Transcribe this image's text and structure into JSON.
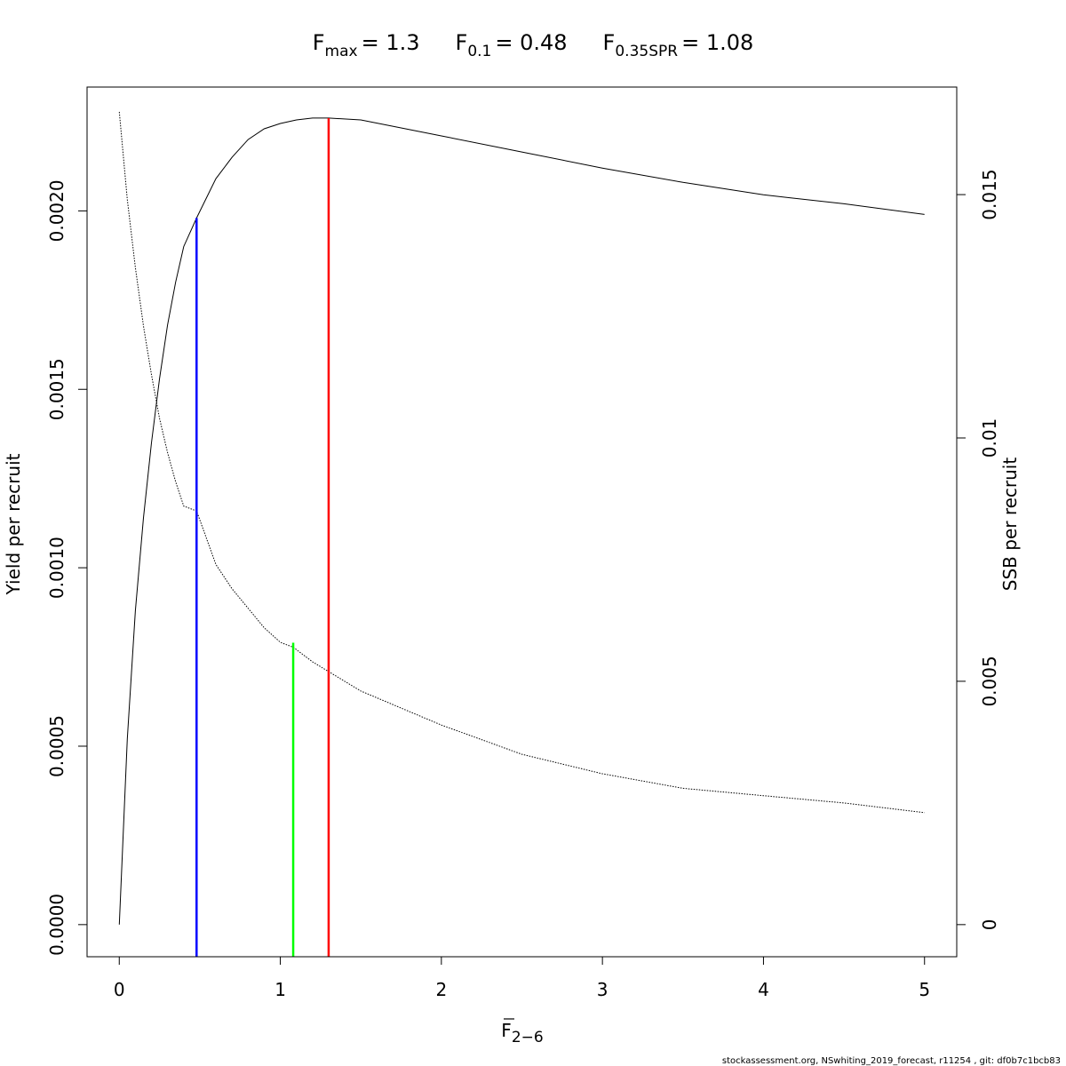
{
  "chart_data": {
    "type": "line",
    "title_parts": [
      {
        "main": "F",
        "sub": "max",
        "value": "= 1.3"
      },
      {
        "main": "F",
        "sub": "0.1",
        "value": "= 0.48"
      },
      {
        "main": "F",
        "sub": "0.35SPR",
        "value": "= 1.08"
      }
    ],
    "xlabel": {
      "main": "F",
      "sub": "2−6"
    },
    "ylabel_left": "Yield per recruit",
    "ylabel_right": "SSB per recruit",
    "xlim": [
      -0.2,
      5.2
    ],
    "ylim_left": [
      -9e-05,
      0.002347
    ],
    "ylim_right": [
      -0.00066,
      0.01721
    ],
    "x_ticks": [
      {
        "value": 0,
        "label": "0"
      },
      {
        "value": 1,
        "label": "1"
      },
      {
        "value": 2,
        "label": "2"
      },
      {
        "value": 3,
        "label": "3"
      },
      {
        "value": 4,
        "label": "4"
      },
      {
        "value": 5,
        "label": "5"
      }
    ],
    "y_left_ticks": [
      {
        "value": 0,
        "label": "0.0000"
      },
      {
        "value": 0.0005,
        "label": "0.0005"
      },
      {
        "value": 0.001,
        "label": "0.0010"
      },
      {
        "value": 0.0015,
        "label": "0.0015"
      },
      {
        "value": 0.002,
        "label": "0.0020"
      }
    ],
    "y_right_ticks": [
      {
        "value": 0,
        "label": "0"
      },
      {
        "value": 0.005,
        "label": "0.005"
      },
      {
        "value": 0.01,
        "label": "0.01"
      },
      {
        "value": 0.015,
        "label": "0.015"
      }
    ],
    "series": [
      {
        "axis": "left",
        "style": "solid",
        "color": "#000000",
        "x": [
          0,
          0.05,
          0.1,
          0.15,
          0.2,
          0.25,
          0.3,
          0.35,
          0.4,
          0.48,
          0.6,
          0.7,
          0.8,
          0.9,
          1.0,
          1.1,
          1.2,
          1.3,
          1.5,
          2.0,
          2.5,
          3.0,
          3.5,
          4.0,
          4.5,
          5.0
        ],
        "y": [
          0,
          0.00052,
          0.00088,
          0.00114,
          0.00135,
          0.00153,
          0.00168,
          0.0018,
          0.0019,
          0.00198,
          0.00209,
          0.00215,
          0.0022,
          0.00223,
          0.002245,
          0.002255,
          0.00226,
          0.00226,
          0.002255,
          0.00221,
          0.002165,
          0.00212,
          0.00208,
          0.002045,
          0.00202,
          0.00199
        ]
      },
      {
        "axis": "right",
        "style": "dotted",
        "color": "#000000",
        "x": [
          0,
          0.05,
          0.1,
          0.15,
          0.2,
          0.25,
          0.3,
          0.35,
          0.4,
          0.48,
          0.6,
          0.7,
          0.8,
          0.9,
          1.0,
          1.08,
          1.2,
          1.3,
          1.5,
          2.0,
          2.5,
          3.0,
          3.5,
          4.0,
          4.5,
          5.0
        ],
        "y": [
          0.0167,
          0.0149,
          0.0135,
          0.0123,
          0.0113,
          0.0104,
          0.0097,
          0.0091,
          0.0086,
          0.0085,
          0.0074,
          0.0069,
          0.0065,
          0.0061,
          0.0058,
          0.0057,
          0.0054,
          0.0052,
          0.0048,
          0.0041,
          0.0035,
          0.0031,
          0.0028,
          0.00265,
          0.0025,
          0.0023
        ]
      }
    ],
    "reference_lines": [
      {
        "name": "F0.1",
        "x": 0.48,
        "y_left_top": 0.00198,
        "color": "#0000ff"
      },
      {
        "name": "F0.35SPR",
        "x": 1.08,
        "y_left_top": 0.00079,
        "color": "#00ff00"
      },
      {
        "name": "Fmax",
        "x": 1.3,
        "y_left_top": 0.00226,
        "color": "#ff0000"
      }
    ]
  },
  "footer_text": "stockassessment.org, NSwhiting_2019_forecast, r11254 , git: df0b7c1bcb83"
}
